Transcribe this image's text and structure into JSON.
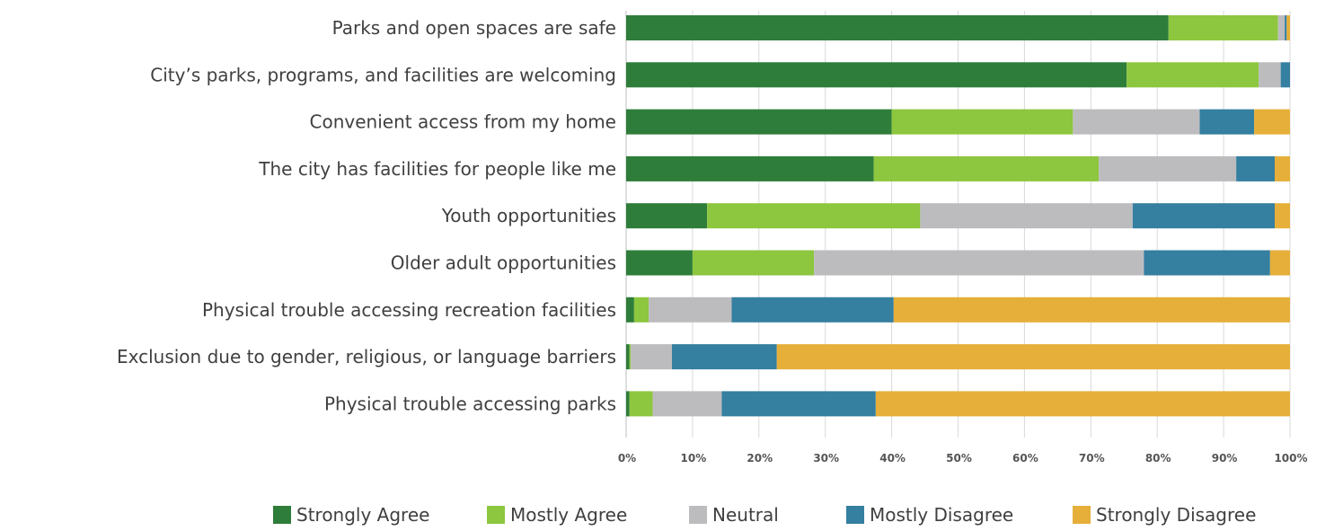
{
  "chart_data": {
    "type": "bar",
    "orientation": "horizontal",
    "stacked": true,
    "categories": [
      "Parks and open spaces are safe",
      "City’s parks, programs, and facilities are welcoming",
      "Convenient access from my home",
      "The city has facilities for people like me",
      "Youth opportunities",
      "Older adult opportunities",
      "Physical trouble accessing recreation facilities",
      "Exclusion due to gender, religious, or language barriers",
      "Physical trouble accessing parks"
    ],
    "series": [
      {
        "name": "Strongly Agree",
        "color": "#2e7d3a",
        "values": [
          81.7,
          75.4,
          40.0,
          37.3,
          12.2,
          10.0,
          1.2,
          0.5,
          0.5
        ]
      },
      {
        "name": "Mostly Agree",
        "color": "#8dc63f",
        "values": [
          16.5,
          19.9,
          27.3,
          33.9,
          32.1,
          18.3,
          2.2,
          0.2,
          3.5
        ]
      },
      {
        "name": "Neutral",
        "color": "#bcbcbf",
        "values": [
          1.0,
          3.3,
          19.1,
          20.7,
          32.0,
          49.7,
          12.5,
          6.2,
          10.4
        ]
      },
      {
        "name": "Mostly Disagree",
        "color": "#357fa0",
        "values": [
          0.3,
          1.4,
          8.2,
          5.8,
          21.4,
          19.0,
          24.4,
          15.8,
          23.2
        ]
      },
      {
        "name": "Strongly Disagree",
        "color": "#e6af3a",
        "values": [
          0.5,
          0.0,
          5.4,
          2.3,
          2.3,
          3.0,
          59.7,
          77.3,
          62.4
        ]
      }
    ],
    "xlim": [
      0,
      100
    ],
    "x_ticks": [
      "0%",
      "10%",
      "20%",
      "30%",
      "40%",
      "50%",
      "60%",
      "70%",
      "80%",
      "90%",
      "100%"
    ],
    "xlabel": "",
    "ylabel": "",
    "grid": "vertical",
    "legend_position": "bottom"
  }
}
